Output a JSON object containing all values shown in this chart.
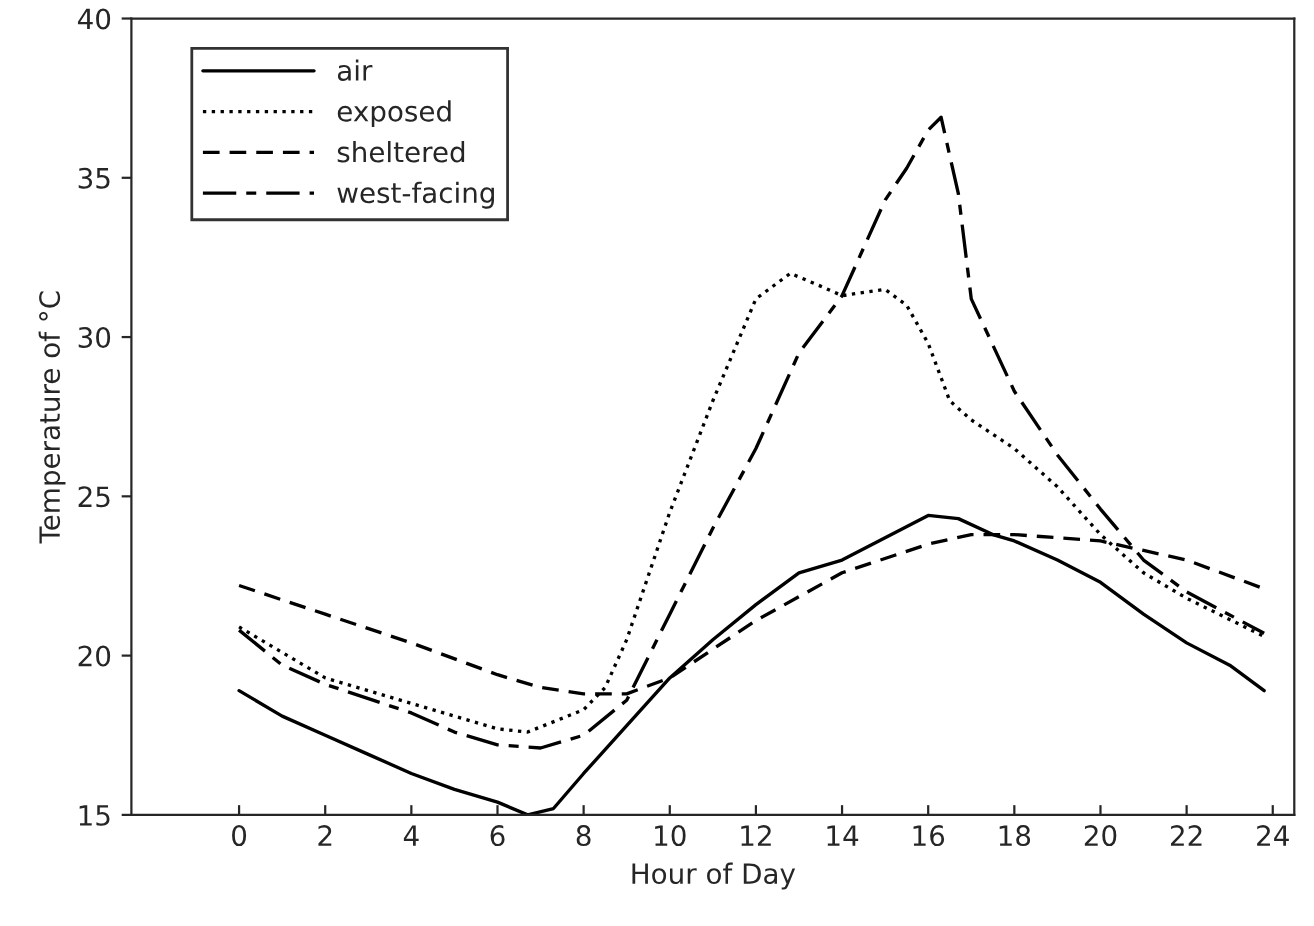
{
  "chart_data": {
    "type": "line",
    "xlabel": "Hour of Day",
    "ylabel": "Temperature of °C",
    "xlim": [
      -2.5,
      24.5
    ],
    "xticks": [
      0,
      2,
      4,
      6,
      8,
      10,
      12,
      14,
      16,
      18,
      20,
      22,
      24
    ],
    "ylim": [
      15,
      40
    ],
    "yticks": [
      15,
      20,
      25,
      30,
      35,
      40
    ],
    "grid": false,
    "legend": "top left",
    "series": [
      {
        "name": "air",
        "color": "#000000",
        "line_style": "solid",
        "x": [
          0,
          1,
          2,
          3,
          4,
          5,
          6,
          6.7,
          7.3,
          8,
          9,
          10,
          11,
          12,
          13,
          14,
          15,
          16,
          16.7,
          17.5,
          18,
          19,
          20,
          21,
          22,
          23,
          23.8
        ],
        "values": [
          18.9,
          18.1,
          17.5,
          16.9,
          16.3,
          15.8,
          15.4,
          15.0,
          15.2,
          16.3,
          17.8,
          19.3,
          20.5,
          21.6,
          22.6,
          23.0,
          23.7,
          24.4,
          24.3,
          23.8,
          23.6,
          23.0,
          22.3,
          21.3,
          20.4,
          19.7,
          18.9
        ]
      },
      {
        "name": "exposed",
        "color": "#000000",
        "line_style": "dotted",
        "x": [
          0,
          2,
          4,
          6,
          6.7,
          8,
          8.5,
          9,
          10,
          11,
          12,
          12.8,
          13.5,
          14,
          15,
          15.5,
          16,
          16.5,
          17,
          18,
          19,
          20,
          21,
          22,
          23.8
        ],
        "values": [
          20.9,
          19.3,
          18.5,
          17.7,
          17.6,
          18.3,
          19.0,
          20.5,
          24.5,
          28.0,
          31.2,
          32.0,
          31.6,
          31.3,
          31.5,
          31.0,
          29.8,
          28.0,
          27.4,
          26.5,
          25.3,
          23.8,
          22.6,
          21.8,
          20.6
        ]
      },
      {
        "name": "sheltered",
        "color": "#000000",
        "line_style": "dashed",
        "x": [
          0,
          2,
          4,
          6,
          7,
          8,
          9,
          10,
          11,
          12,
          14,
          16,
          17,
          18,
          20,
          21,
          22,
          23.8
        ],
        "values": [
          22.2,
          21.3,
          20.4,
          19.4,
          19.0,
          18.8,
          18.8,
          19.3,
          20.2,
          21.1,
          22.6,
          23.5,
          23.8,
          23.8,
          23.6,
          23.3,
          23.0,
          22.1
        ]
      },
      {
        "name": "west-facing",
        "color": "#000000",
        "line_style": "dashdot",
        "x": [
          0,
          1,
          2,
          4,
          5,
          6,
          7,
          8,
          9,
          10,
          11,
          12,
          13,
          14,
          15,
          15.5,
          16,
          16.3,
          16.7,
          17,
          18,
          19,
          20,
          21,
          22,
          23.8
        ],
        "values": [
          20.8,
          19.7,
          19.1,
          18.2,
          17.6,
          17.2,
          17.1,
          17.5,
          18.6,
          21.3,
          24.0,
          26.5,
          29.5,
          31.3,
          34.3,
          35.3,
          36.5,
          36.9,
          34.5,
          31.2,
          28.3,
          26.3,
          24.6,
          23.0,
          22.0,
          20.7
        ]
      }
    ]
  }
}
